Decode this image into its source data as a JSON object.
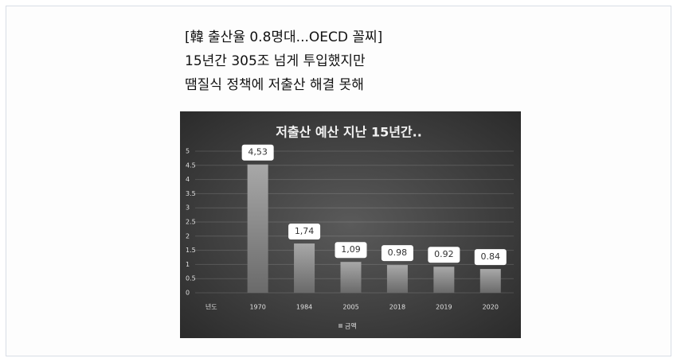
{
  "headline": [
    "[韓 출산율 0.8명대...OECD 꼴찌]",
    "15년간 305조 넘게 투입했지만",
    "땜질식 정책에 저출산 해결 못해"
  ],
  "chart_data": {
    "type": "bar",
    "title": "저출산 예산 지난 15년간..",
    "categories": [
      "년도",
      "1970",
      "1984",
      "2005",
      "2018",
      "2019",
      "2020"
    ],
    "series": [
      {
        "name": "금액",
        "color": "#8c8c8c",
        "values": [
          null,
          4.53,
          1.74,
          1.09,
          0.98,
          0.92,
          0.84
        ],
        "value_labels": [
          null,
          "4,53",
          "1,74",
          "1,09",
          "0.98",
          "0.92",
          "0.84"
        ]
      }
    ],
    "ylim": [
      0,
      5
    ],
    "yticks": [
      0,
      0.5,
      1,
      1.5,
      2,
      2.5,
      3,
      3.5,
      4,
      4.5,
      5
    ],
    "grid": true,
    "legend": "bottom"
  }
}
